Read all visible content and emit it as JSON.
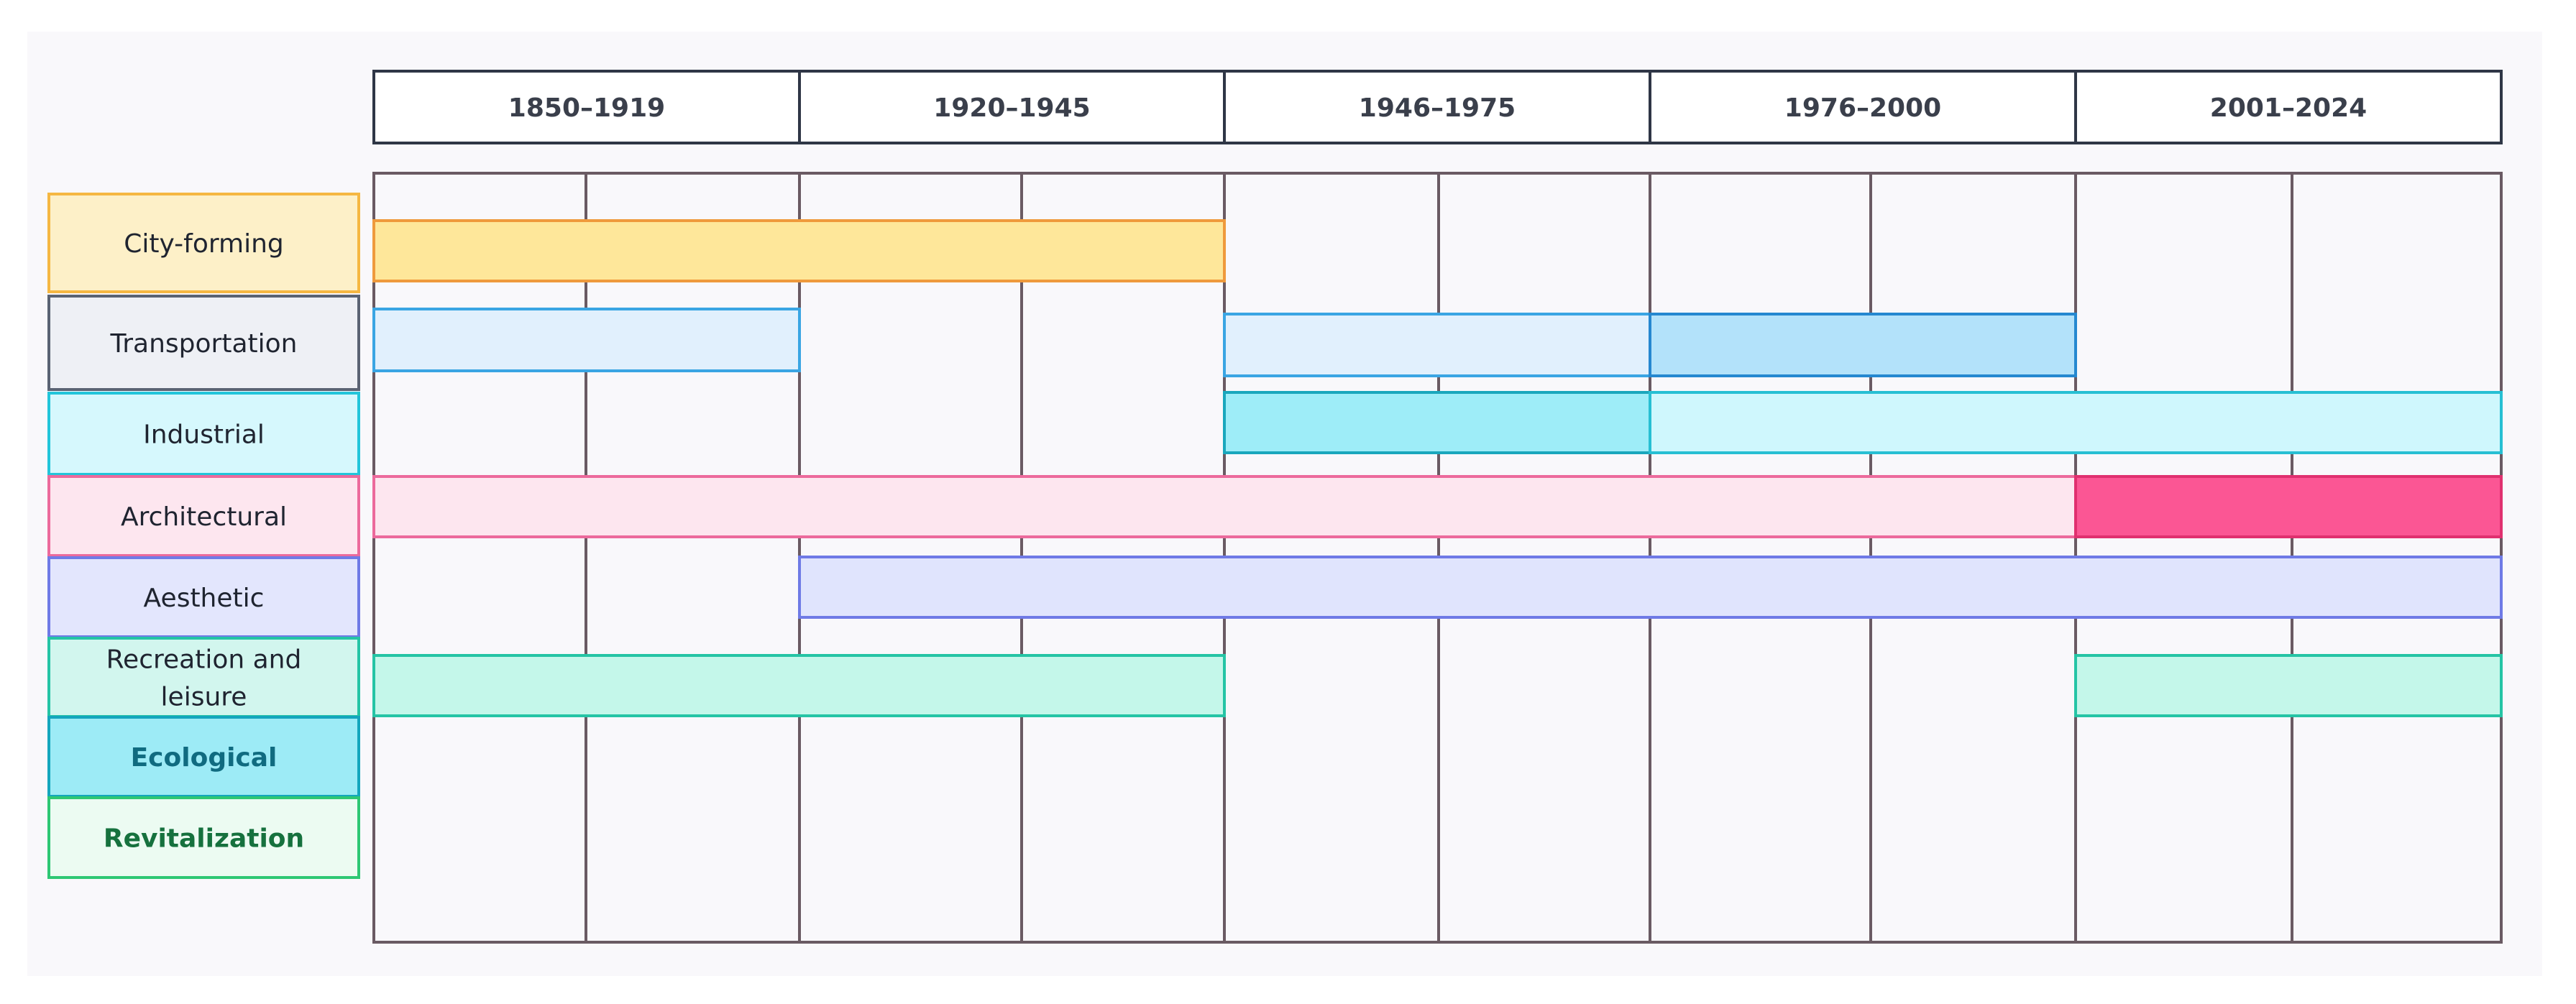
{
  "periods": [
    "1850–1919",
    "1920–1945",
    "1946–1975",
    "1976–2000",
    "2001–2024"
  ],
  "categories": [
    {
      "label": [
        "City-forming"
      ],
      "fill": "#fdf0c8",
      "stroke": "#f5b742",
      "text": "#1f2430",
      "bold": false
    },
    {
      "label": [
        "Transportation"
      ],
      "fill": "#eef0f5",
      "stroke": "#5a6373",
      "text": "#1f2430",
      "bold": false
    },
    {
      "label": [
        "Industrial"
      ],
      "fill": "#d6f8fd",
      "stroke": "#22c5da",
      "text": "#1f2430",
      "bold": false
    },
    {
      "label": [
        "Architectural"
      ],
      "fill": "#fde6ef",
      "stroke": "#ec6a9c",
      "text": "#1f2430",
      "bold": false
    },
    {
      "label": [
        "Aesthetic"
      ],
      "fill": "#e3e6fd",
      "stroke": "#6f7ae6",
      "text": "#1f2430",
      "bold": false
    },
    {
      "label": [
        "Recreation and",
        "leisure"
      ],
      "fill": "#d2f6ee",
      "stroke": "#25c4a5",
      "text": "#1f2430",
      "bold": false
    },
    {
      "label": [
        "Ecological"
      ],
      "fill": "#9debf6",
      "stroke": "#14a6bd",
      "text": "#106b80",
      "bold": true
    },
    {
      "label": [
        "Revitalization"
      ],
      "fill": "#ecfbf2",
      "stroke": "#2ec774",
      "text": "#16713e",
      "bold": true
    }
  ],
  "bars": [
    {
      "category": "City-forming",
      "from": "1850–1919",
      "to": "1920–1945",
      "fill": "#fee79a",
      "stroke": "#ef9a3c"
    },
    {
      "category": "Transportation",
      "from": "1850–1919",
      "to": "1850–1919",
      "fill": "#e1f0fd",
      "stroke": "#3aa5e3"
    },
    {
      "category": "Transportation",
      "from": "1946–1975",
      "to": "1946–1975",
      "fill": "#e1f0fd",
      "stroke": "#3aa5e3"
    },
    {
      "category": "Transportation",
      "from": "1976–2000",
      "to": "1976–2000",
      "fill": "#b3e2fa",
      "stroke": "#2588d0"
    },
    {
      "category": "Industrial",
      "from": "1946–1975",
      "to": "1946–1975",
      "fill": "#9eedf8",
      "stroke": "#1aa7bd"
    },
    {
      "category": "Industrial",
      "from": "1976–2000",
      "to": "2001–2024",
      "fill": "#cff7fd",
      "stroke": "#27bfd3"
    },
    {
      "category": "Architectural",
      "from": "1850–1919",
      "to": "1976–2000",
      "fill": "#fde6ef",
      "stroke": "#ec6a9c"
    },
    {
      "category": "Architectural",
      "from": "2001–2024",
      "to": "2001–2024",
      "fill": "#fb5694",
      "stroke": "#e0306f"
    },
    {
      "category": "Aesthetic",
      "from": "1920–1945",
      "to": "2001–2024",
      "fill": "#e0e4fd",
      "stroke": "#6f7ae6"
    },
    {
      "category": "Recreation and leisure",
      "from": "1850–1919",
      "to": "1920–1945",
      "fill": "#c4f7ea",
      "stroke": "#25c4a5"
    },
    {
      "category": "Recreation and leisure",
      "from": "2001–2024",
      "to": "2001–2024",
      "fill": "#c4f7ea",
      "stroke": "#25c4a5"
    }
  ],
  "colors": {
    "background": "#f9f8fb",
    "grid": "#6a5a63",
    "header_border": "#2f3646",
    "header_fill": "#ffffff"
  }
}
